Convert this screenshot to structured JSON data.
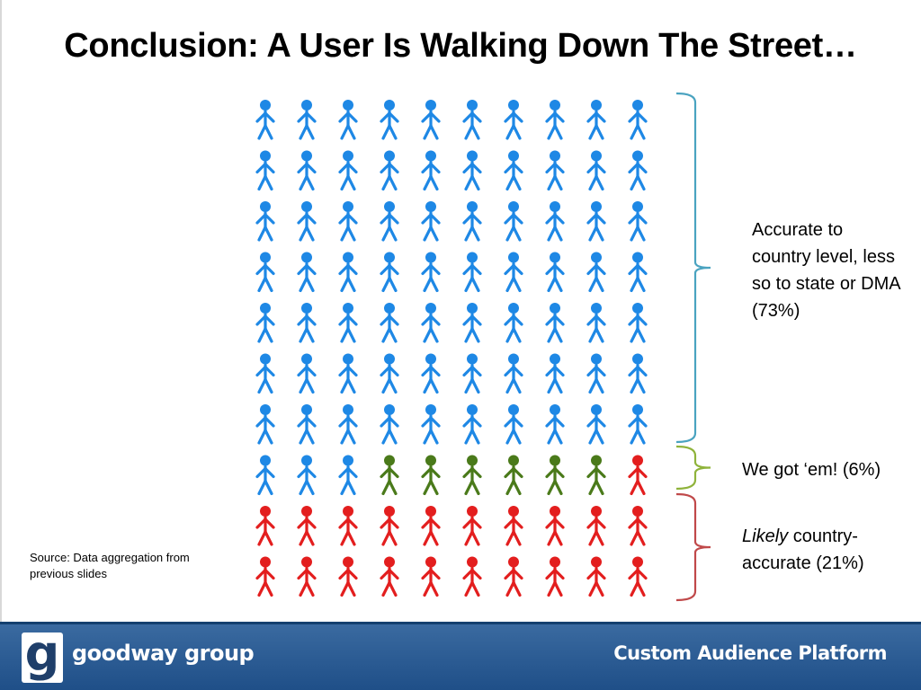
{
  "slide": {
    "title": "Conclusion: A User Is Walking Down The Street…",
    "source": "Source: Data aggregation from previous slides"
  },
  "people_grid": {
    "columns": 10,
    "rows": 10,
    "colors": {
      "country_level": "#1e88e5",
      "got_em": "#4a7a1a",
      "likely": "#e31e1e"
    },
    "icon": "person-icon",
    "counts": {
      "country_level": 73,
      "got_em": 6,
      "likely": 21
    }
  },
  "brackets": {
    "country_level": {
      "color": "#4aa3c0",
      "label": "Accurate to country level, less so to state or DMA (73%)"
    },
    "got_em": {
      "color": "#8fb33b",
      "label": "We got ‘em! (6%)"
    },
    "likely": {
      "color": "#c0494a",
      "label_em": "Likely",
      "label_rest": " country-accurate (21%)"
    }
  },
  "footer": {
    "brand": "goodway group",
    "logo_letter": "g",
    "product": "Custom Audience Platform",
    "color": "#2a5d96"
  }
}
